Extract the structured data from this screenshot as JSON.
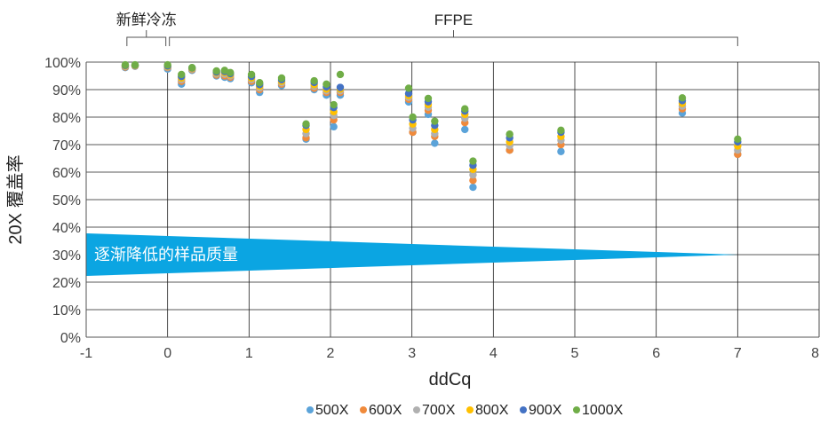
{
  "chart_data": {
    "type": "scatter",
    "title": "",
    "xlabel": "ddCq",
    "ylabel": "20X 覆盖率",
    "xlim": [
      -1,
      8
    ],
    "ylim": [
      0,
      100
    ],
    "x_ticks": [
      -1,
      0,
      1,
      2,
      3,
      4,
      5,
      6,
      7,
      8
    ],
    "x_tick_labels": [
      "-1",
      "0",
      "1",
      "2",
      "3",
      "4",
      "5",
      "6",
      "7",
      "8"
    ],
    "y_ticks": [
      0,
      10,
      20,
      30,
      40,
      50,
      60,
      70,
      80,
      90,
      100
    ],
    "y_tick_labels": [
      "0%",
      "10%",
      "20%",
      "30%",
      "40%",
      "50%",
      "60%",
      "70%",
      "80%",
      "90%",
      "100%"
    ],
    "grid": true,
    "legend_position": "bottom",
    "groups": [
      {
        "label": "新鲜冷冻",
        "x_range": [
          -0.5,
          0
        ]
      },
      {
        "label": "FFPE",
        "x_range": [
          0,
          7
        ]
      }
    ],
    "annotation": {
      "text": "逐渐降低的样品质量",
      "color": "#0ba5e2"
    },
    "x": [
      -0.52,
      -0.4,
      0,
      0.17,
      0.3,
      0.6,
      0.7,
      0.77,
      1.03,
      1.13,
      1.4,
      1.7,
      1.8,
      1.95,
      2.04,
      2.12,
      2.96,
      3.01,
      3.2,
      3.28,
      3.65,
      3.75,
      4.2,
      4.83,
      6.32,
      7.0
    ],
    "series": [
      {
        "name": "500X",
        "color": "#5ba3d9",
        "values": [
          98,
          98.5,
          97.5,
          92,
          97,
          95,
          94.5,
          94,
          92.5,
          89,
          91.5,
          72,
          90,
          88,
          76.5,
          88,
          85.5,
          74.5,
          81,
          70.5,
          75.5,
          54.5,
          68,
          67.5,
          81.5,
          66.5
        ]
      },
      {
        "name": "600X",
        "color": "#f08a3b",
        "values": [
          98.2,
          98.6,
          98,
          93,
          97.3,
          95.3,
          95,
          94.5,
          93,
          90,
          92,
          72.5,
          90.5,
          89,
          79,
          89,
          86.5,
          74.5,
          82.5,
          73,
          78,
          57,
          68,
          70,
          83,
          66.5
        ]
      },
      {
        "name": "700X",
        "color": "#b0b0b0",
        "values": [
          98.4,
          98.7,
          98.2,
          93.6,
          97.5,
          95.7,
          95.6,
          95,
          93.6,
          90.6,
          92.5,
          74,
          91.2,
          89.6,
          80.6,
          89.6,
          87.2,
          76,
          83.6,
          74,
          79.6,
          59,
          69.6,
          71.6,
          84,
          68
        ]
      },
      {
        "name": "800X",
        "color": "#ffc000",
        "values": [
          98.6,
          98.8,
          98.4,
          94.2,
          97.7,
          96.1,
          96.2,
          95.4,
          94.2,
          91.2,
          93,
          75.5,
          91.8,
          90.2,
          82,
          90.2,
          87.8,
          77.5,
          84.6,
          75.5,
          81,
          61,
          71,
          73,
          85,
          69.5
        ]
      },
      {
        "name": "900X",
        "color": "#4472c4",
        "values": [
          98.8,
          98.9,
          98.6,
          94.8,
          97.9,
          96.4,
          96.6,
          95.8,
          94.8,
          91.8,
          93.6,
          77,
          92.6,
          91,
          83.5,
          90.8,
          88.6,
          79,
          85.6,
          77,
          82.2,
          62.5,
          72.5,
          74.5,
          86,
          71
        ]
      },
      {
        "name": "1000X",
        "color": "#70ad47",
        "values": [
          99,
          99,
          99,
          95.5,
          98,
          96.8,
          97,
          96.2,
          95.5,
          92.5,
          94.2,
          77.5,
          93.2,
          92,
          84.5,
          95.5,
          90.5,
          80,
          86.8,
          78.5,
          83,
          64,
          73.8,
          75.2,
          87,
          72
        ]
      }
    ]
  }
}
